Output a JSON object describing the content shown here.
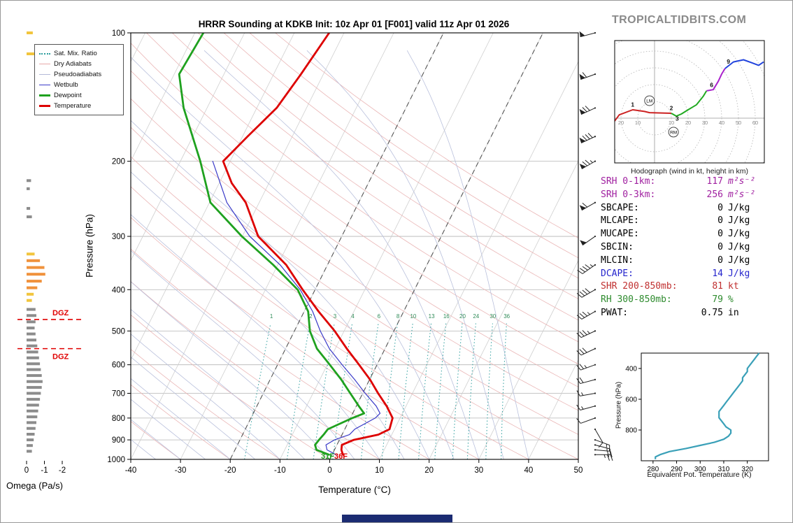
{
  "logo": "TROPICALTIDBITS.COM",
  "title": "HRRR Sounding at KDKB Init: 10z Apr 01 [F001] valid 11z Apr 01 2026",
  "legend": [
    {
      "label": "Sat. Mix. Ratio",
      "color": "#2e9e9e",
      "line": "dotted"
    },
    {
      "label": "Dry Adiabats",
      "color": "#e8a8a8",
      "line": "thin"
    },
    {
      "label": "Pseudoadiabats",
      "color": "#b4bad8",
      "line": "thin"
    },
    {
      "label": "Wetbulb",
      "color": "#3a3ac8",
      "line": "medium"
    },
    {
      "label": "Dewpoint",
      "color": "#1fa11f",
      "line": "thick"
    },
    {
      "label": "Temperature",
      "color": "#dd0000",
      "line": "thick"
    }
  ],
  "indices": {
    "rows": [
      {
        "label": "SRH 0-1km:",
        "value": "117",
        "unit": "m²s⁻²",
        "color": "#a020a0",
        "italic_unit": true
      },
      {
        "label": "SRH 0-3km:",
        "value": "256",
        "unit": "m²s⁻²",
        "color": "#a020a0",
        "italic_unit": true
      },
      {
        "label": "SBCAPE:",
        "value": "0",
        "unit": "J/kg",
        "color": "#000000"
      },
      {
        "label": "MLCAPE:",
        "value": "0",
        "unit": "J/kg",
        "color": "#000000"
      },
      {
        "label": "MUCAPE:",
        "value": "0",
        "unit": "J/kg",
        "color": "#000000"
      },
      {
        "label": "SBCIN:",
        "value": "0",
        "unit": "J/kg",
        "color": "#000000"
      },
      {
        "label": "MLCIN:",
        "value": "0",
        "unit": "J/kg",
        "color": "#000000"
      },
      {
        "label": "DCAPE:",
        "value": "14",
        "unit": "J/kg",
        "color": "#2525cd"
      },
      {
        "label": "SHR 200-850mb:",
        "value": "81",
        "unit": "kt",
        "color": "#c03030"
      },
      {
        "label": "RH 300-850mb:",
        "value": "79",
        "unit": "%",
        "color": "#2e8b2e"
      },
      {
        "label": "PWAT:",
        "value": "0.75",
        "unit": "in",
        "color": "#000000"
      }
    ]
  },
  "chart_data": {
    "skewt": {
      "type": "line",
      "xlabel": "Temperature (°C)",
      "ylabel": "Pressure (hPa)",
      "xlim": [
        -40,
        50
      ],
      "plim": [
        100,
        1000
      ],
      "x_ticks": [
        -40,
        -30,
        -20,
        -10,
        0,
        10,
        20,
        30,
        40,
        50
      ],
      "p_ticks": [
        100,
        200,
        300,
        400,
        500,
        600,
        700,
        800,
        900,
        1000
      ],
      "isotherm_step": 10,
      "dashed_isotherms": [
        0,
        -20
      ],
      "mixing_ratio_lines": [
        1,
        2,
        3,
        4,
        6,
        8,
        10,
        13,
        16,
        20,
        24,
        30,
        36
      ],
      "dgz_label": "DGZ",
      "dgz_levels_hpa": [
        470,
        550
      ],
      "surface_dewpoint_f": "31F",
      "surface_temp_f": "36F",
      "series": [
        {
          "name": "Temperature",
          "color": "#dd0000",
          "width": 2.8,
          "points": [
            [
              975,
              2.2
            ],
            [
              950,
              1.4
            ],
            [
              925,
              1.0
            ],
            [
              900,
              2.9
            ],
            [
              875,
              7.3
            ],
            [
              850,
              9.0
            ],
            [
              800,
              8.5
            ],
            [
              750,
              6.1
            ],
            [
              700,
              3.1
            ],
            [
              650,
              0.1
            ],
            [
              600,
              -3.6
            ],
            [
              550,
              -7.7
            ],
            [
              500,
              -11.9
            ],
            [
              450,
              -17.1
            ],
            [
              400,
              -22.5
            ],
            [
              350,
              -28.3
            ],
            [
              300,
              -36.8
            ],
            [
              250,
              -42.7
            ],
            [
              225,
              -47.5
            ],
            [
              200,
              -51.4
            ],
            [
              175,
              -49.0
            ],
            [
              150,
              -46.0
            ],
            [
              125,
              -44.5
            ],
            [
              100,
              -43.0
            ]
          ]
        },
        {
          "name": "Dewpoint",
          "color": "#1fa11f",
          "width": 2.8,
          "points": [
            [
              975,
              -0.6
            ],
            [
              950,
              -3.6
            ],
            [
              925,
              -4.4
            ],
            [
              900,
              -4.1
            ],
            [
              875,
              -3.7
            ],
            [
              850,
              -3.4
            ],
            [
              800,
              0.4
            ],
            [
              780,
              2.3
            ],
            [
              750,
              0.5
            ],
            [
              700,
              -2.5
            ],
            [
              650,
              -5.7
            ],
            [
              600,
              -9.5
            ],
            [
              550,
              -13.7
            ],
            [
              500,
              -16.9
            ],
            [
              450,
              -19.2
            ],
            [
              400,
              -23.5
            ],
            [
              350,
              -30.9
            ],
            [
              300,
              -40.1
            ],
            [
              250,
              -49.8
            ],
            [
              200,
              -56.0
            ],
            [
              150,
              -64.7
            ],
            [
              125,
              -69.0
            ],
            [
              100,
              -68.3
            ]
          ]
        },
        {
          "name": "Wetbulb",
          "color": "#3a3ac8",
          "width": 1.2,
          "points": [
            [
              975,
              0.8
            ],
            [
              950,
              -1.5
            ],
            [
              925,
              -2.2
            ],
            [
              900,
              -1.0
            ],
            [
              875,
              1.5
            ],
            [
              850,
              2.0
            ],
            [
              800,
              5.0
            ],
            [
              780,
              5.5
            ],
            [
              750,
              4.0
            ],
            [
              700,
              0.5
            ],
            [
              650,
              -3.0
            ],
            [
              600,
              -7.0
            ],
            [
              550,
              -11.2
            ],
            [
              500,
              -14.8
            ],
            [
              450,
              -18.3
            ],
            [
              400,
              -23.0
            ],
            [
              350,
              -29.5
            ],
            [
              300,
              -38.5
            ],
            [
              250,
              -46.5
            ],
            [
              200,
              -53.5
            ]
          ]
        }
      ]
    },
    "wind_barbs": {
      "units": "kt",
      "levels": [
        [
          975,
          25,
          90
        ],
        [
          950,
          20,
          95
        ],
        [
          925,
          15,
          105
        ],
        [
          900,
          15,
          110
        ],
        [
          850,
          10,
          150
        ],
        [
          800,
          10,
          250
        ],
        [
          750,
          15,
          255
        ],
        [
          700,
          15,
          260
        ],
        [
          650,
          20,
          255
        ],
        [
          600,
          25,
          250
        ],
        [
          550,
          30,
          245
        ],
        [
          500,
          35,
          245
        ],
        [
          450,
          35,
          240
        ],
        [
          400,
          40,
          240
        ],
        [
          350,
          45,
          235
        ],
        [
          300,
          50,
          235
        ],
        [
          250,
          60,
          240
        ],
        [
          200,
          75,
          240
        ],
        [
          175,
          80,
          245
        ],
        [
          150,
          70,
          245
        ],
        [
          125,
          60,
          250
        ],
        [
          100,
          50,
          255
        ]
      ]
    },
    "omega": {
      "type": "bar",
      "xlabel": "Omega (Pa/s)",
      "x_ticks": [
        0,
        -1,
        -2
      ],
      "colors": {
        "g": "#8c8c8c",
        "o": "#f0923c",
        "y": "#f2c53d"
      },
      "bars": [
        [
          100,
          -0.35,
          "y"
        ],
        [
          112,
          -0.5,
          "y"
        ],
        [
          222,
          -0.25,
          "g"
        ],
        [
          232,
          -0.18,
          "g"
        ],
        [
          258,
          -0.2,
          "g"
        ],
        [
          270,
          -0.3,
          "g"
        ],
        [
          330,
          -0.45,
          "y"
        ],
        [
          342,
          -0.75,
          "o"
        ],
        [
          355,
          -1.0,
          "o"
        ],
        [
          368,
          -1.05,
          "o"
        ],
        [
          382,
          -0.85,
          "o"
        ],
        [
          396,
          -0.6,
          "o"
        ],
        [
          410,
          -0.4,
          "y"
        ],
        [
          424,
          -0.3,
          "y"
        ],
        [
          445,
          -0.5,
          "g"
        ],
        [
          460,
          -0.55,
          "g"
        ],
        [
          476,
          -0.5,
          "g"
        ],
        [
          492,
          -0.45,
          "g"
        ],
        [
          508,
          -0.5,
          "g"
        ],
        [
          525,
          -0.55,
          "g"
        ],
        [
          542,
          -0.6,
          "g"
        ],
        [
          560,
          -0.65,
          "g"
        ],
        [
          578,
          -0.7,
          "g"
        ],
        [
          597,
          -0.75,
          "g"
        ],
        [
          616,
          -0.8,
          "g"
        ],
        [
          636,
          -0.85,
          "g"
        ],
        [
          657,
          -0.9,
          "g"
        ],
        [
          678,
          -0.85,
          "g"
        ],
        [
          700,
          -0.8,
          "g"
        ],
        [
          723,
          -0.75,
          "g"
        ],
        [
          746,
          -0.7,
          "g"
        ],
        [
          770,
          -0.65,
          "g"
        ],
        [
          795,
          -0.6,
          "g"
        ],
        [
          820,
          -0.55,
          "g"
        ],
        [
          846,
          -0.5,
          "g"
        ],
        [
          873,
          -0.45,
          "g"
        ],
        [
          900,
          -0.4,
          "g"
        ],
        [
          928,
          -0.35,
          "g"
        ],
        [
          957,
          -0.3,
          "g"
        ]
      ]
    },
    "hodograph": {
      "caption": "Hodograph (wind in kt, height in km)",
      "ring_interval_kt": 10,
      "axis_labels_left": [
        20,
        10
      ],
      "axis_labels_right": [
        10,
        20,
        30,
        40,
        50,
        60
      ],
      "height_markers": [
        {
          "km": "1",
          "u": -13,
          "v": 6.8
        },
        {
          "km": "2",
          "u": 10,
          "v": 4.8
        },
        {
          "km": "3",
          "u": 13.5,
          "v": -1.5
        },
        {
          "km": "6",
          "u": 34,
          "v": 18.5
        },
        {
          "km": "9",
          "u": 44,
          "v": 32.5
        }
      ],
      "storm_motions": [
        {
          "label": "LM",
          "u": -3,
          "v": 10.4
        },
        {
          "label": "RM",
          "u": 11.3,
          "v": -8.3
        }
      ],
      "segments": [
        {
          "layer": "0-3 km",
          "color": "#cc2222",
          "points": [
            [
              -24,
              -2
            ],
            [
              -21,
              2
            ],
            [
              -13,
              5
            ],
            [
              -6,
              4
            ],
            [
              -3,
              3.3
            ],
            [
              10,
              2.9
            ]
          ]
        },
        {
          "layer": "3-6 km",
          "color": "#22aa22",
          "points": [
            [
              10,
              2.9
            ],
            [
              13,
              1.2
            ],
            [
              16,
              2.5
            ],
            [
              20,
              5
            ],
            [
              25,
              8
            ],
            [
              29,
              13
            ],
            [
              31,
              16.3
            ]
          ]
        },
        {
          "layer": "6-9 km",
          "color": "#aa22cc",
          "points": [
            [
              31,
              16.3
            ],
            [
              35,
              17.0
            ],
            [
              38,
              22
            ],
            [
              40,
              26.3
            ],
            [
              42,
              29.6
            ]
          ]
        },
        {
          "layer": "9-12 km",
          "color": "#2244dd",
          "points": [
            [
              42,
              29.6
            ],
            [
              47,
              33.5
            ],
            [
              53,
              34.8
            ],
            [
              58,
              33.0
            ],
            [
              62,
              31.5
            ],
            [
              65,
              33.5
            ]
          ]
        }
      ]
    },
    "theta_e": {
      "type": "line",
      "xlabel": "Equivalent Pot. Temperature (K)",
      "ylabel": "Pressure (hPa)",
      "x_ticks": [
        280,
        290,
        300,
        310,
        320
      ],
      "y_ticks": [
        400,
        600,
        800
      ],
      "xlim": [
        275,
        329
      ],
      "plim": [
        300,
        1000
      ],
      "color": "#3aa0b8",
      "points": [
        [
          990,
          281
        ],
        [
          975,
          281
        ],
        [
          960,
          283
        ],
        [
          940,
          287
        ],
        [
          920,
          294
        ],
        [
          900,
          300
        ],
        [
          880,
          306
        ],
        [
          860,
          310
        ],
        [
          840,
          312
        ],
        [
          820,
          313
        ],
        [
          800,
          313
        ],
        [
          780,
          311
        ],
        [
          760,
          310
        ],
        [
          740,
          309
        ],
        [
          720,
          308
        ],
        [
          700,
          308
        ],
        [
          680,
          308
        ],
        [
          660,
          309
        ],
        [
          640,
          310
        ],
        [
          620,
          311
        ],
        [
          600,
          312
        ],
        [
          580,
          313
        ],
        [
          560,
          314
        ],
        [
          540,
          315
        ],
        [
          520,
          316
        ],
        [
          500,
          317
        ],
        [
          480,
          318
        ],
        [
          460,
          318
        ],
        [
          440,
          319
        ],
        [
          420,
          320
        ],
        [
          400,
          320
        ],
        [
          380,
          321
        ],
        [
          360,
          322
        ],
        [
          340,
          323
        ],
        [
          320,
          324
        ],
        [
          300,
          325
        ]
      ]
    }
  }
}
